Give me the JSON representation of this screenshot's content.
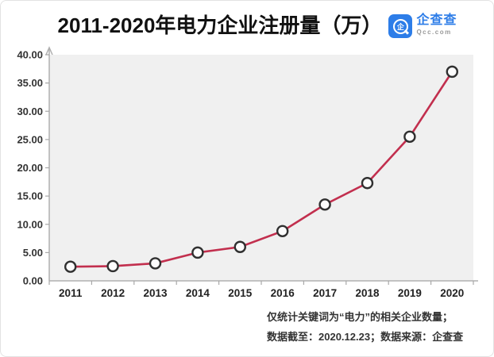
{
  "header": {
    "title": "2011-2020年电力企业注册量（万）",
    "logo": {
      "name": "企查查",
      "domain": "Qcc.com",
      "glyph": "企",
      "blue": "#2d7de8"
    }
  },
  "chart_data": {
    "type": "line",
    "title": "2011-2020年电力企业注册量（万）",
    "categories": [
      "2011",
      "2012",
      "2013",
      "2014",
      "2015",
      "2016",
      "2017",
      "2018",
      "2019",
      "2020"
    ],
    "values": [
      2.5,
      2.6,
      3.1,
      5.0,
      6.0,
      8.8,
      13.5,
      17.3,
      25.5,
      37.0
    ],
    "xlabel": "",
    "ylabel": "",
    "ylim": [
      0,
      40
    ],
    "ytick_step": 5,
    "ytick_decimals": 2,
    "grid": false,
    "legend": "none",
    "marker_style": "open-circle",
    "colors": {
      "line": "#c22f4e",
      "marker_fill": "#fcfcfc",
      "marker_stroke": "#303030",
      "plot_bg": "#f0f0f0",
      "axis": "#b0b0b0",
      "tick": "#a8a8a8",
      "y_label": "#333333",
      "x_label": "#222222"
    }
  },
  "footnote": {
    "line1": "仅统计关键词为“电力”的相关企业数量；",
    "line2": "数据截至：2020.12.23；数据来源：企查查"
  }
}
